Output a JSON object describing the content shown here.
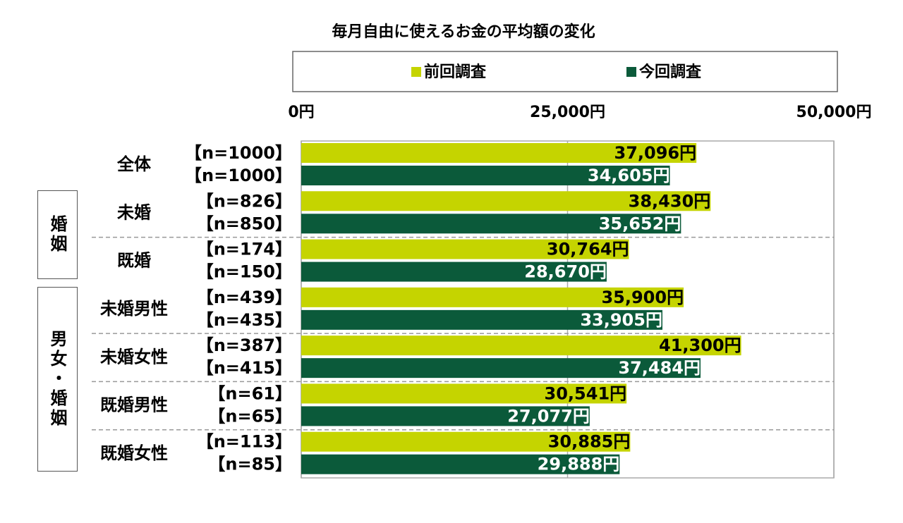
{
  "chart_data": {
    "type": "bar",
    "orientation": "horizontal",
    "title": "毎月自由に使えるお金の平均額の変化",
    "categories": [
      "全体",
      "未婚",
      "既婚",
      "未婚男性",
      "未婚女性",
      "既婚男性",
      "既婚女性"
    ],
    "groups": [
      {
        "label": "婚姻"
      },
      {
        "label": "男女・婚姻"
      }
    ],
    "series": [
      {
        "name": "前回調査",
        "color": "#c5d400",
        "values": [
          37096,
          38430,
          30764,
          35900,
          41300,
          30541,
          30885
        ],
        "value_labels": [
          "37,096円",
          "38,430円",
          "30,764円",
          "35,900円",
          "41,300円",
          "30,541円",
          "30,885円"
        ],
        "n_labels": [
          "【n=1000】",
          "【n=826】",
          "【n=174】",
          "【n=439】",
          "【n=387】",
          "【n=61】",
          "【n=113】"
        ]
      },
      {
        "name": "今回調査",
        "color": "#0b5a3a",
        "values": [
          34605,
          35652,
          28670,
          33905,
          37484,
          27077,
          29888
        ],
        "value_labels": [
          "34,605円",
          "35,652円",
          "28,670円",
          "33,905円",
          "37,484円",
          "27,077円",
          "29,888円"
        ],
        "n_labels": [
          "【n=1000】",
          "【n=850】",
          "【n=150】",
          "【n=435】",
          "【n=415】",
          "【n=65】",
          "【n=85】"
        ]
      }
    ],
    "xlim": [
      0,
      50000
    ],
    "xticks": [
      {
        "value": 0,
        "label": "0円"
      },
      {
        "value": 25000,
        "label": "25,000円"
      },
      {
        "value": 50000,
        "label": "50,000円"
      }
    ],
    "grid": true
  }
}
